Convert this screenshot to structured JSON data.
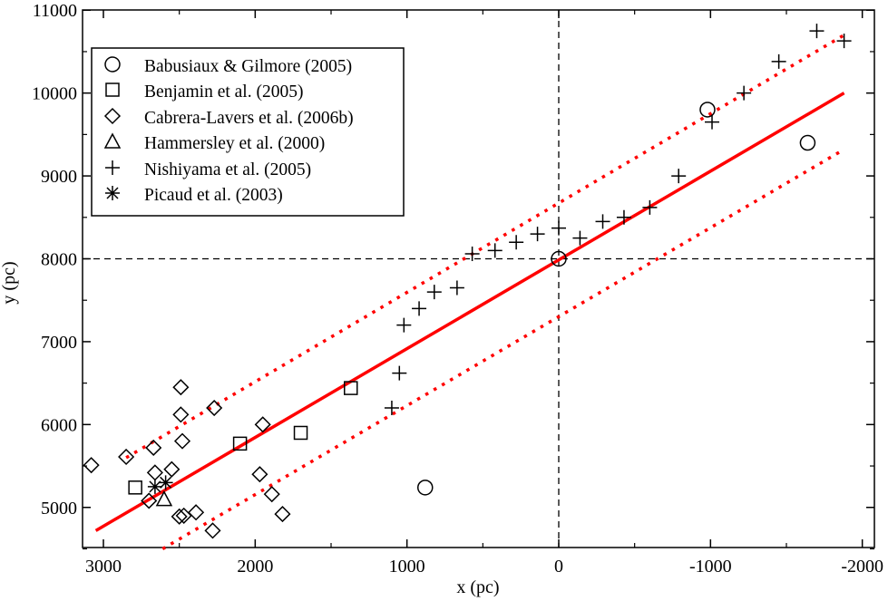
{
  "chart_data": {
    "type": "scatter",
    "xlabel": "x (pc)",
    "ylabel": "y (pc)",
    "xlim": [
      3100,
      -2000
    ],
    "ylim": [
      4500,
      11000
    ],
    "x_ticks": [
      3000,
      2000,
      1000,
      0,
      -1000,
      -2000
    ],
    "y_ticks": [
      5000,
      6000,
      7000,
      8000,
      9000,
      10000,
      11000
    ],
    "legend_position": "top-left",
    "reference_lines": {
      "x": 0,
      "y": 8000
    },
    "fit_line": {
      "from": [
        3050,
        4720
      ],
      "to": [
        -1880,
        10000
      ],
      "color": "#ff0000"
    },
    "band_lines": [
      {
        "from": [
          2850,
          5600
        ],
        "to": [
          -1880,
          10700
        ],
        "color": "#ff0000"
      },
      {
        "from": [
          2610,
          4500
        ],
        "to": [
          -1880,
          9320
        ],
        "color": "#ff0000"
      }
    ],
    "series": [
      {
        "name": "Babusiaux & Gilmore (2005)",
        "marker": "circle",
        "x": [
          0,
          -980,
          -1640,
          880
        ],
        "y": [
          8000,
          9800,
          9400,
          5240
        ]
      },
      {
        "name": "Benjamin et al. (2005)",
        "marker": "square",
        "x": [
          2790,
          2100,
          1700,
          1370
        ],
        "y": [
          5240,
          5770,
          5900,
          6440
        ]
      },
      {
        "name": "Cabrera-Lavers et al. (2006b)",
        "marker": "diamond",
        "x": [
          3080,
          2850,
          2670,
          2660,
          2550,
          2490,
          2490,
          2480,
          2470,
          2270,
          1950,
          1970,
          1890,
          1820,
          2280,
          2390,
          2500,
          2700
        ],
        "y": [
          5510,
          5610,
          5720,
          5420,
          5460,
          6450,
          6120,
          5800,
          4900,
          6200,
          6000,
          5400,
          5160,
          4920,
          4720,
          4940,
          4890,
          5080
        ]
      },
      {
        "name": "Hammersley et al. (2000)",
        "marker": "triangle",
        "x": [
          2600
        ],
        "y": [
          5100
        ]
      },
      {
        "name": "Nishiyama et al. (2005)",
        "marker": "plus",
        "x": [
          1100,
          1050,
          1020,
          920,
          820,
          670,
          570,
          420,
          280,
          140,
          0,
          -140,
          -290,
          -430,
          -600,
          -790,
          -1010,
          -1220,
          -1450,
          -1700,
          -1880
        ],
        "y": [
          6200,
          6620,
          7200,
          7400,
          7600,
          7650,
          8060,
          8100,
          8200,
          8300,
          8370,
          8250,
          8450,
          8500,
          8620,
          9000,
          9650,
          10000,
          10380,
          10750,
          10630
        ]
      },
      {
        "name": "Picaud et al. (2003)",
        "marker": "asterisk",
        "x": [
          2660,
          2590
        ],
        "y": [
          5250,
          5300
        ]
      }
    ]
  }
}
